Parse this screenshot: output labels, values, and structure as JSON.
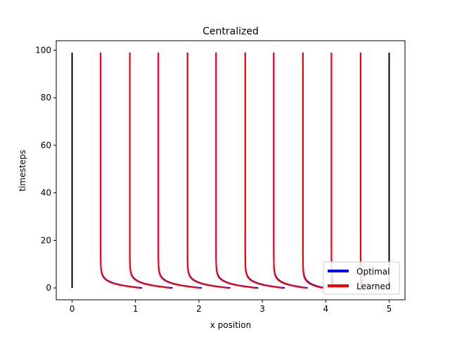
{
  "chart_data": {
    "type": "line",
    "title": "Centralized",
    "xlabel": "x position",
    "ylabel": "timesteps",
    "xlim": [
      -0.25,
      5.25
    ],
    "ylim": [
      -5,
      104
    ],
    "xticks": [
      0,
      1,
      2,
      3,
      4,
      5
    ],
    "yticks": [
      0,
      20,
      40,
      60,
      80,
      100
    ],
    "grid": false,
    "legend_position": "lower-right",
    "boundaries": [
      {
        "x": 0,
        "t_start": 0,
        "t_end": 99,
        "color": "#000000"
      },
      {
        "x": 5,
        "t_start": 0,
        "t_end": 99,
        "color": "#000000"
      }
    ],
    "agents": [
      {
        "start_x": 1.07,
        "final_x": 0.45
      },
      {
        "start_x": 1.55,
        "final_x": 0.91
      },
      {
        "start_x": 2.01,
        "final_x": 1.36
      },
      {
        "start_x": 2.46,
        "final_x": 1.82
      },
      {
        "start_x": 2.9,
        "final_x": 2.27
      },
      {
        "start_x": 3.32,
        "final_x": 2.73
      },
      {
        "start_x": 3.68,
        "final_x": 3.18
      },
      {
        "start_x": 3.95,
        "final_x": 3.64
      },
      {
        "start_x": 4.1,
        "final_x": 4.09
      },
      {
        "start_x": 4.55,
        "final_x": 4.55
      }
    ],
    "series": [
      {
        "name": "Optimal",
        "color": "#0000ff"
      },
      {
        "name": "Learned",
        "color": "#ff0000"
      }
    ]
  }
}
